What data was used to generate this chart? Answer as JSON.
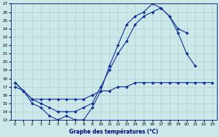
{
  "title": "Graphe des températures (°C)",
  "bg": "#cce8e8",
  "grid_color": "#aac8c8",
  "line_color": "#1030a0",
  "ylim": [
    13,
    27
  ],
  "xlim": [
    -0.5,
    23.5
  ],
  "ytick_min": 13,
  "ytick_max": 27,
  "xticks": [
    0,
    1,
    2,
    3,
    4,
    5,
    6,
    7,
    8,
    9,
    10,
    11,
    12,
    13,
    14,
    15,
    16,
    17,
    18,
    19,
    20,
    21,
    22,
    23
  ],
  "curve1_x": [
    0,
    1,
    2,
    3,
    4,
    5,
    6,
    7,
    8,
    9,
    10,
    11,
    12,
    13,
    14,
    15,
    16,
    17,
    18,
    19,
    20,
    21
  ],
  "curve1_y": [
    17.5,
    16.5,
    15.0,
    14.5,
    13.5,
    13.0,
    13.5,
    13.0,
    13.0,
    14.5,
    16.5,
    19.5,
    22.0,
    24.5,
    25.5,
    26.0,
    27.0,
    26.5,
    25.5,
    23.5,
    21.0,
    19.5
  ],
  "curve2_x": [
    0,
    1,
    2,
    3,
    4,
    5,
    6,
    7,
    8,
    9,
    10,
    11,
    12,
    13,
    14,
    15,
    16,
    17,
    18,
    19,
    20
  ],
  "curve2_y": [
    17.0,
    16.5,
    15.5,
    15.0,
    14.5,
    14.0,
    14.0,
    14.0,
    14.5,
    15.0,
    17.0,
    19.0,
    21.0,
    22.5,
    24.5,
    25.5,
    26.0,
    26.5,
    25.5,
    24.0,
    23.5
  ],
  "curve3_x": [
    0,
    1,
    2,
    3,
    4,
    5,
    6,
    7,
    8,
    9,
    10,
    11,
    12,
    13,
    14,
    15,
    16,
    17,
    18,
    19,
    20,
    21,
    22,
    23
  ],
  "curve3_y": [
    17.5,
    16.5,
    15.5,
    15.5,
    15.5,
    15.5,
    15.5,
    15.5,
    15.5,
    16.0,
    16.5,
    16.5,
    17.0,
    17.0,
    17.5,
    17.5,
    17.5,
    17.5,
    17.5,
    17.5,
    17.5,
    17.5,
    17.5,
    17.5
  ]
}
